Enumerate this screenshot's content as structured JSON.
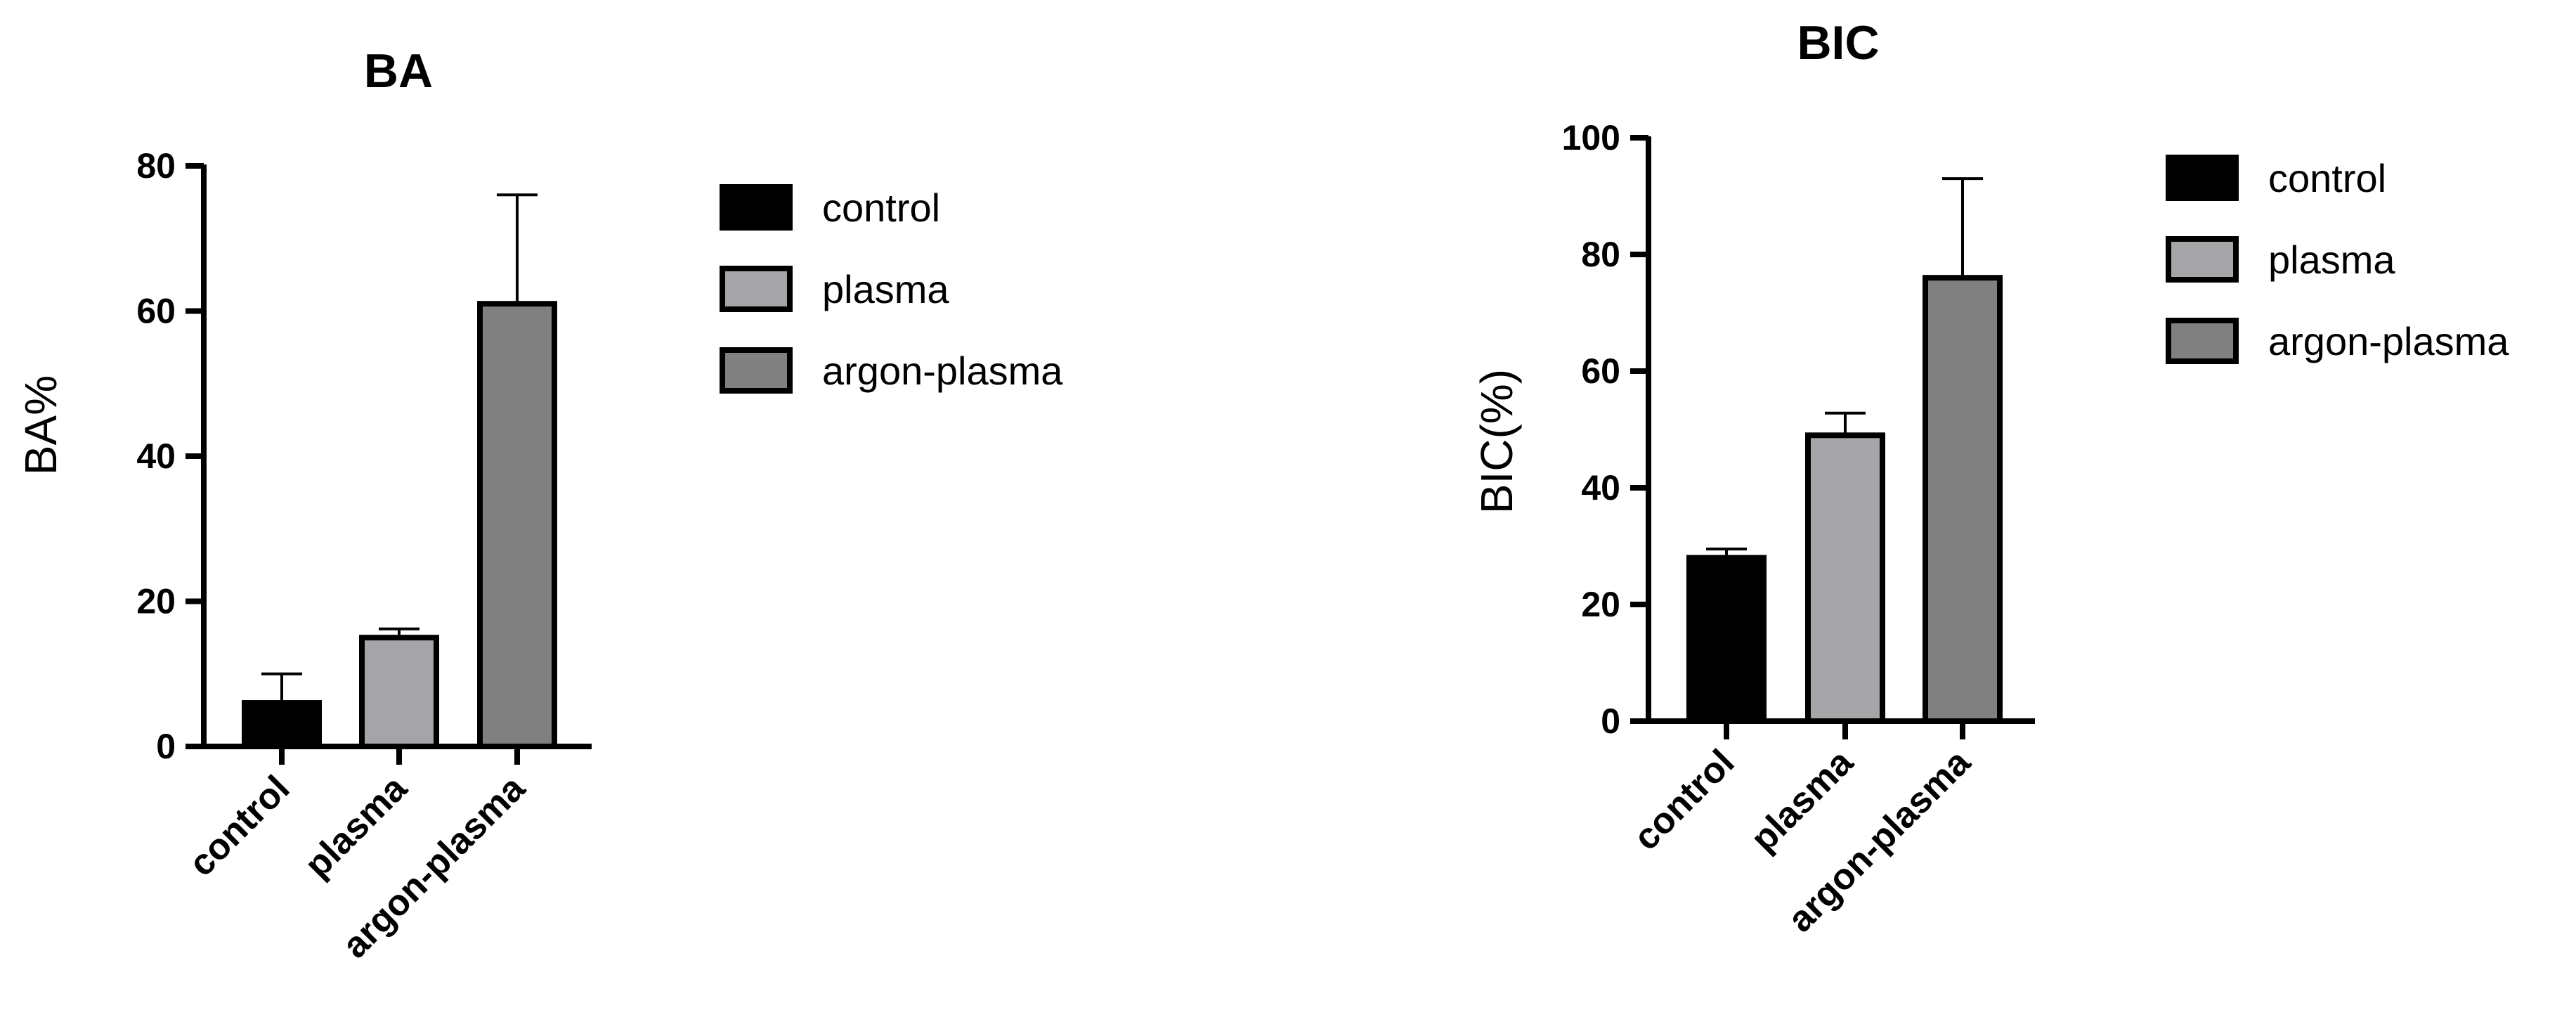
{
  "chart_data": [
    {
      "type": "bar",
      "title": "BA",
      "xlabel": "",
      "ylabel": "BA%",
      "ylim": [
        0,
        80
      ],
      "yticks": [
        0,
        20,
        40,
        60,
        80
      ],
      "categories": [
        "control",
        "plasma",
        "argon-plasma"
      ],
      "values": [
        6,
        15,
        61
      ],
      "error_upper": [
        4,
        1.2,
        15
      ],
      "colors": [
        "#000000",
        "#a5a5a8",
        "#808080"
      ],
      "legend": [
        "control",
        "plasma",
        "argon-plasma"
      ],
      "legend_position": "right",
      "grid": false
    },
    {
      "type": "bar",
      "title": "BIC",
      "xlabel": "",
      "ylabel": "BIC(%)",
      "ylim": [
        0,
        100
      ],
      "yticks": [
        0,
        20,
        40,
        60,
        80,
        100
      ],
      "categories": [
        "control",
        "plasma",
        "argon-plasma"
      ],
      "values": [
        28,
        49,
        76
      ],
      "error_upper": [
        1.5,
        3.8,
        17
      ],
      "colors": [
        "#000000",
        "#a5a5a8",
        "#808080"
      ],
      "legend": [
        "control",
        "plasma",
        "argon-plasma"
      ],
      "legend_position": "right",
      "grid": false
    }
  ]
}
